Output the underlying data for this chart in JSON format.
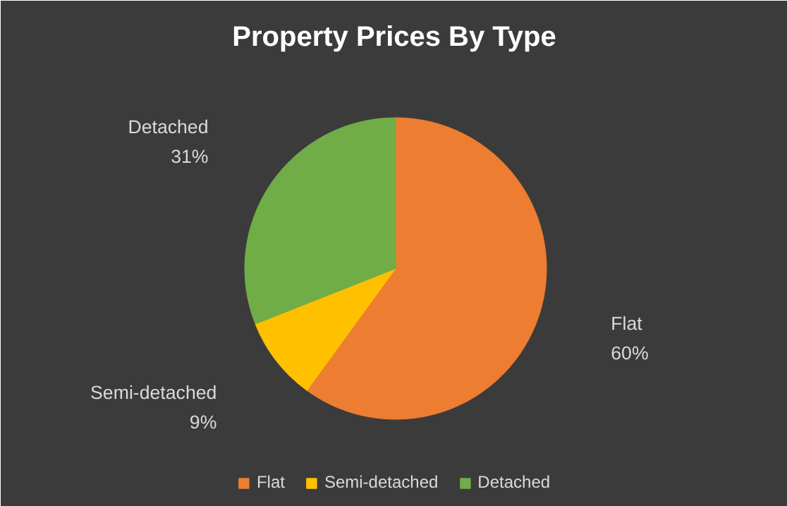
{
  "chart_data": {
    "type": "pie",
    "title": "Property Prices By Type",
    "categories": [
      "Flat",
      "Semi-detached",
      "Detached"
    ],
    "values": [
      60,
      9,
      31
    ],
    "colors": [
      "#ed7d31",
      "#ffc000",
      "#70ad47"
    ],
    "value_labels": [
      "60%",
      "9%",
      "31%"
    ],
    "legend": "bottom"
  }
}
